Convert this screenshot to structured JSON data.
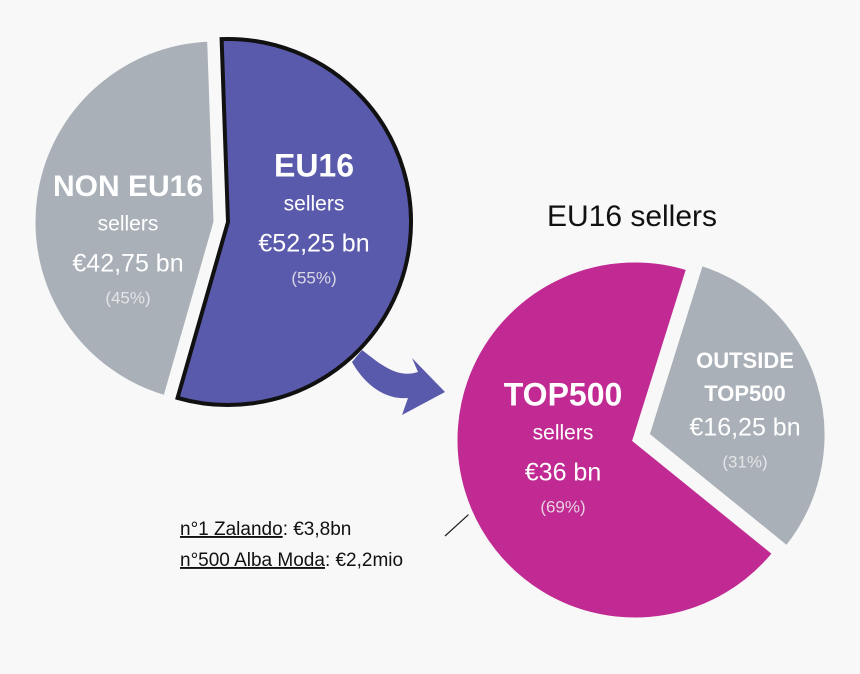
{
  "chart_data": [
    {
      "type": "pie",
      "categories": [
        "NON EU16",
        "EU16"
      ],
      "sublabels": [
        "sellers",
        "sellers"
      ],
      "amounts": [
        "€42,75 bn",
        "€52,25 bn"
      ],
      "values": [
        45,
        55
      ],
      "value_labels": [
        "(45%)",
        "(55%)"
      ],
      "colors": [
        "#aab0b8",
        "#5a5aac"
      ]
    },
    {
      "type": "pie",
      "title": "EU16 sellers",
      "categories": [
        "TOP500",
        "OUTSIDE TOP500"
      ],
      "sublabels": [
        "sellers"
      ],
      "amounts": [
        "€36 bn",
        "€16,25 bn"
      ],
      "values": [
        69,
        31
      ],
      "value_labels": [
        "(69%)",
        "(31%)"
      ],
      "colors": [
        "#c02a92",
        "#aab0b8"
      ],
      "annotations": [
        {
          "name": "n°1 Zalando",
          "detail": ": €3,8bn"
        },
        {
          "name": "n°500 Alba Moda",
          "detail": ": €2,2mio"
        }
      ]
    }
  ]
}
